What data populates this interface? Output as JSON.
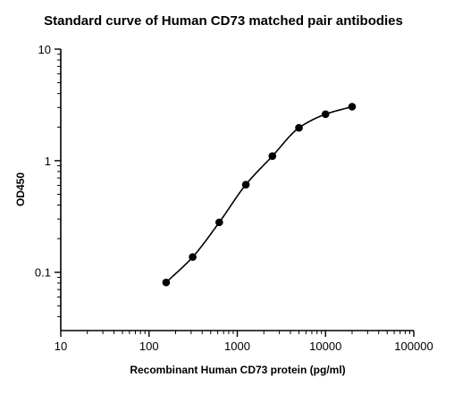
{
  "chart_data": {
    "type": "scatter",
    "title": "Standard curve of Human CD73 matched pair antibodies",
    "xlabel": "Recombinant Human CD73 protein (pg/ml)",
    "ylabel": "OD450",
    "x_scale": "log",
    "y_scale": "log",
    "xlim": [
      10,
      100000
    ],
    "ylim": [
      0.03,
      10
    ],
    "x_ticks": [
      {
        "value": 10,
        "label": "10"
      },
      {
        "value": 100,
        "label": "100"
      },
      {
        "value": 1000,
        "label": "1000"
      },
      {
        "value": 10000,
        "label": "10000"
      },
      {
        "value": 100000,
        "label": "100000"
      }
    ],
    "y_ticks": [
      {
        "value": 0.1,
        "label": "0.1"
      },
      {
        "value": 1,
        "label": "1"
      },
      {
        "value": 10,
        "label": "10"
      }
    ],
    "grid": false,
    "fitted_curve": true,
    "series": [
      {
        "x": [
          156.25,
          312.5,
          625,
          1250,
          2500,
          5000,
          10000,
          20000
        ],
        "y": [
          0.081,
          0.137,
          0.28,
          0.61,
          1.1,
          1.97,
          2.61,
          3.05
        ]
      }
    ],
    "colors": {
      "points": "#000000",
      "curve": "#000000",
      "axes": "#000000"
    }
  }
}
